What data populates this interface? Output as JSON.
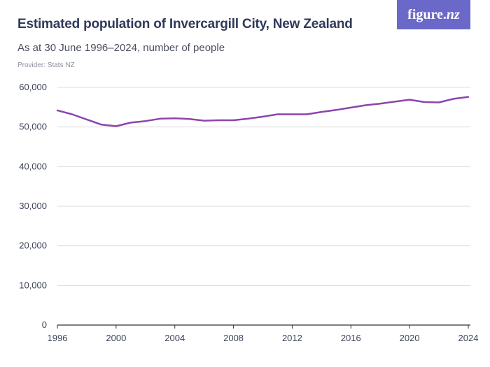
{
  "header": {
    "title": "Estimated population of Invercargill City, New Zealand",
    "subtitle": "As at 30 June 1996–2024, number of people",
    "provider": "Provider: Stats NZ"
  },
  "logo": {
    "text_main": "figure.",
    "text_accent": "nz",
    "background": "#6a68c8"
  },
  "colors": {
    "line": "#8e44ad",
    "grid": "#dcdcdc",
    "axis": "#333333"
  },
  "chart_data": {
    "type": "line",
    "title": "Estimated population of Invercargill City, New Zealand",
    "subtitle": "As at 30 June 1996–2024, number of people",
    "xlabel": "",
    "ylabel": "",
    "xlim": [
      1996,
      2024
    ],
    "ylim": [
      0,
      60000
    ],
    "grid": "horizontal",
    "y_ticks": [
      0,
      10000,
      20000,
      30000,
      40000,
      50000,
      60000
    ],
    "y_tick_labels": [
      "0",
      "10,000",
      "20,000",
      "30,000",
      "40,000",
      "50,000",
      "60,000"
    ],
    "x_ticks": [
      1996,
      2000,
      2004,
      2008,
      2012,
      2016,
      2020,
      2024
    ],
    "x_tick_labels": [
      "1996",
      "2000",
      "2004",
      "2008",
      "2012",
      "2016",
      "2020",
      "2024"
    ],
    "series": [
      {
        "x": [
          1996,
          1997,
          1998,
          1999,
          2000,
          2001,
          2002,
          2003,
          2004,
          2005,
          2006,
          2007,
          2008,
          2009,
          2010,
          2011,
          2012,
          2013,
          2014,
          2015,
          2016,
          2017,
          2018,
          2019,
          2020,
          2021,
          2022,
          2023,
          2024
        ],
        "values": [
          54200,
          53200,
          51900,
          50600,
          50200,
          51100,
          51500,
          52100,
          52200,
          52000,
          51600,
          51700,
          51700,
          52100,
          52600,
          53200,
          53200,
          53200,
          53800,
          54300,
          54900,
          55500,
          55900,
          56400,
          56900,
          56300,
          56200,
          57100,
          57600
        ]
      }
    ]
  }
}
